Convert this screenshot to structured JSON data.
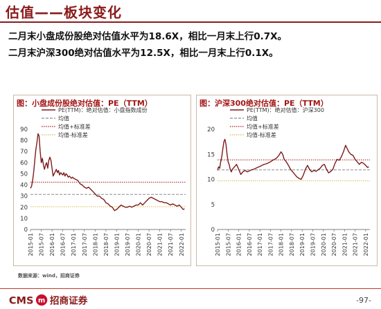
{
  "page_title": "估值——板块变化",
  "bullets": [
    "二月末小盘成份股绝对估值水平为18.6X，相比一月末上行0.7X。",
    "二月末沪深300绝对估值水平为12.5X，相比一月末上行0.1X。"
  ],
  "source": "数据来源：wind，招商证券",
  "footer": {
    "logo_text": "CMS",
    "logo_mark": "m",
    "logo_cn": "招商证券",
    "page": "-97-"
  },
  "colors": {
    "brand": "#8b1a1a",
    "pe_line": "#7b1a1a",
    "mean": "#8a8a8a",
    "plus_std": "#a31515",
    "minus_std": "#d6b84a"
  },
  "chart_data": [
    {
      "type": "line",
      "title": "图：小盘成份股绝对估值：PE（TTM）",
      "series_names": [
        "PE(TTM)：绝对估值：小盘指数成份",
        "均值",
        "均值+标准差",
        "均值-标准差"
      ],
      "ylim": [
        0,
        90
      ],
      "yticks": [
        0,
        10,
        20,
        30,
        40,
        50,
        60,
        70,
        80,
        90
      ],
      "xlim": [
        2015.0,
        2022.2
      ],
      "xtick_labels": [
        "2015-01",
        "2015-07",
        "2016-01",
        "2016-07",
        "2017-01",
        "2017-07",
        "2018-01",
        "2018-07",
        "2019-01",
        "2019-07",
        "2020-01",
        "2020-07",
        "2021-01",
        "2021-07",
        "2022-01"
      ],
      "mean": 31.5,
      "mean_plus_std": 42.5,
      "mean_minus_std": 20.5,
      "points": [
        [
          2015.0,
          37
        ],
        [
          2015.05,
          39
        ],
        [
          2015.1,
          44
        ],
        [
          2015.15,
          52
        ],
        [
          2015.2,
          62
        ],
        [
          2015.25,
          72
        ],
        [
          2015.3,
          78
        ],
        [
          2015.35,
          86
        ],
        [
          2015.4,
          84
        ],
        [
          2015.45,
          70
        ],
        [
          2015.5,
          60
        ],
        [
          2015.55,
          64
        ],
        [
          2015.6,
          58
        ],
        [
          2015.65,
          54
        ],
        [
          2015.7,
          58
        ],
        [
          2015.75,
          60
        ],
        [
          2015.8,
          55
        ],
        [
          2015.85,
          62
        ],
        [
          2015.9,
          65
        ],
        [
          2015.95,
          62
        ],
        [
          2016.0,
          55
        ],
        [
          2016.05,
          48
        ],
        [
          2016.1,
          50
        ],
        [
          2016.15,
          52
        ],
        [
          2016.2,
          54
        ],
        [
          2016.25,
          51
        ],
        [
          2016.3,
          53
        ],
        [
          2016.35,
          49
        ],
        [
          2016.4,
          51
        ],
        [
          2016.45,
          50
        ],
        [
          2016.5,
          49
        ],
        [
          2016.55,
          51
        ],
        [
          2016.6,
          48
        ],
        [
          2016.65,
          50
        ],
        [
          2016.7,
          49
        ],
        [
          2016.75,
          47
        ],
        [
          2016.8,
          48
        ],
        [
          2016.85,
          47
        ],
        [
          2016.9,
          46
        ],
        [
          2016.95,
          47
        ],
        [
          2017.0,
          46
        ],
        [
          2017.1,
          45
        ],
        [
          2017.2,
          44
        ],
        [
          2017.3,
          41
        ],
        [
          2017.4,
          40
        ],
        [
          2017.5,
          38
        ],
        [
          2017.6,
          37
        ],
        [
          2017.7,
          38
        ],
        [
          2017.8,
          36
        ],
        [
          2017.9,
          34
        ],
        [
          2018.0,
          32
        ],
        [
          2018.1,
          30
        ],
        [
          2018.2,
          30
        ],
        [
          2018.3,
          28
        ],
        [
          2018.4,
          27
        ],
        [
          2018.5,
          24
        ],
        [
          2018.6,
          23
        ],
        [
          2018.7,
          21
        ],
        [
          2018.8,
          20
        ],
        [
          2018.9,
          17
        ],
        [
          2019.0,
          18
        ],
        [
          2019.1,
          20
        ],
        [
          2019.2,
          22
        ],
        [
          2019.3,
          21
        ],
        [
          2019.4,
          20
        ],
        [
          2019.5,
          20
        ],
        [
          2019.6,
          21
        ],
        [
          2019.7,
          20
        ],
        [
          2019.8,
          21
        ],
        [
          2019.9,
          22
        ],
        [
          2020.0,
          22
        ],
        [
          2020.1,
          24
        ],
        [
          2020.2,
          22
        ],
        [
          2020.3,
          24
        ],
        [
          2020.4,
          26
        ],
        [
          2020.5,
          28
        ],
        [
          2020.6,
          29
        ],
        [
          2020.7,
          28
        ],
        [
          2020.8,
          27
        ],
        [
          2020.9,
          26
        ],
        [
          2021.0,
          25
        ],
        [
          2021.1,
          25
        ],
        [
          2021.2,
          24
        ],
        [
          2021.3,
          24
        ],
        [
          2021.4,
          23
        ],
        [
          2021.5,
          22
        ],
        [
          2021.6,
          23
        ],
        [
          2021.7,
          22
        ],
        [
          2021.8,
          21
        ],
        [
          2021.9,
          22
        ],
        [
          2022.0,
          20
        ],
        [
          2022.08,
          18
        ],
        [
          2022.15,
          18.6
        ]
      ]
    },
    {
      "type": "line",
      "title": "图：沪深300绝对估值：PE（TTM）",
      "series_names": [
        "PE(TTM)：绝对估值：沪深300",
        "均值",
        "均值+标准差",
        "均值-标准差"
      ],
      "ylim": [
        0,
        20
      ],
      "yticks": [
        0,
        5,
        10,
        15,
        20
      ],
      "xlim": [
        2015.0,
        2022.2
      ],
      "xtick_labels": [
        "2015-01",
        "2015-07",
        "2016-01",
        "2016-07",
        "2017-01",
        "2017-07",
        "2018-01",
        "2018-07",
        "2019-01",
        "2019-07",
        "2020-01",
        "2020-07",
        "2021-01",
        "2021-07",
        "2022-01"
      ],
      "mean": 11.9,
      "mean_plus_std": 13.9,
      "mean_minus_std": 9.7,
      "points": [
        [
          2015.0,
          11.8
        ],
        [
          2015.05,
          12.5
        ],
        [
          2015.1,
          12.2
        ],
        [
          2015.15,
          13.5
        ],
        [
          2015.2,
          14.5
        ],
        [
          2015.25,
          16.0
        ],
        [
          2015.3,
          17.5
        ],
        [
          2015.35,
          18.0
        ],
        [
          2015.4,
          17.0
        ],
        [
          2015.45,
          15.0
        ],
        [
          2015.5,
          13.5
        ],
        [
          2015.55,
          13.0
        ],
        [
          2015.6,
          12.0
        ],
        [
          2015.65,
          11.5
        ],
        [
          2015.7,
          12.0
        ],
        [
          2015.8,
          12.5
        ],
        [
          2015.9,
          13.0
        ],
        [
          2016.0,
          12.0
        ],
        [
          2016.1,
          11.0
        ],
        [
          2016.2,
          11.5
        ],
        [
          2016.3,
          11.8
        ],
        [
          2016.4,
          11.5
        ],
        [
          2016.5,
          11.7
        ],
        [
          2016.6,
          11.9
        ],
        [
          2016.7,
          12.0
        ],
        [
          2016.8,
          12.2
        ],
        [
          2016.9,
          12.4
        ],
        [
          2017.0,
          12.6
        ],
        [
          2017.1,
          12.8
        ],
        [
          2017.2,
          13.0
        ],
        [
          2017.3,
          13.1
        ],
        [
          2017.4,
          13.3
        ],
        [
          2017.5,
          13.5
        ],
        [
          2017.6,
          13.8
        ],
        [
          2017.7,
          14.0
        ],
        [
          2017.8,
          14.3
        ],
        [
          2017.9,
          14.8
        ],
        [
          2018.0,
          15.5
        ],
        [
          2018.08,
          15.0
        ],
        [
          2018.15,
          14.0
        ],
        [
          2018.25,
          13.5
        ],
        [
          2018.35,
          12.8
        ],
        [
          2018.45,
          12.0
        ],
        [
          2018.55,
          11.5
        ],
        [
          2018.65,
          11.0
        ],
        [
          2018.75,
          10.5
        ],
        [
          2018.85,
          10.2
        ],
        [
          2018.95,
          10.0
        ],
        [
          2019.05,
          10.8
        ],
        [
          2019.15,
          12.0
        ],
        [
          2019.25,
          12.8
        ],
        [
          2019.35,
          12.0
        ],
        [
          2019.45,
          11.5
        ],
        [
          2019.55,
          11.8
        ],
        [
          2019.65,
          11.6
        ],
        [
          2019.75,
          11.9
        ],
        [
          2019.85,
          12.2
        ],
        [
          2019.95,
          12.8
        ],
        [
          2020.05,
          13.0
        ],
        [
          2020.15,
          12.0
        ],
        [
          2020.25,
          11.3
        ],
        [
          2020.35,
          11.6
        ],
        [
          2020.45,
          12.0
        ],
        [
          2020.55,
          13.2
        ],
        [
          2020.65,
          14.0
        ],
        [
          2020.75,
          13.8
        ],
        [
          2020.85,
          14.5
        ],
        [
          2020.95,
          15.5
        ],
        [
          2021.05,
          16.8
        ],
        [
          2021.12,
          16.2
        ],
        [
          2021.2,
          15.5
        ],
        [
          2021.3,
          15.0
        ],
        [
          2021.4,
          14.8
        ],
        [
          2021.5,
          14.0
        ],
        [
          2021.6,
          13.5
        ],
        [
          2021.7,
          13.0
        ],
        [
          2021.8,
          13.4
        ],
        [
          2021.9,
          13.2
        ],
        [
          2022.0,
          12.8
        ],
        [
          2022.08,
          12.4
        ],
        [
          2022.15,
          12.5
        ]
      ]
    }
  ]
}
